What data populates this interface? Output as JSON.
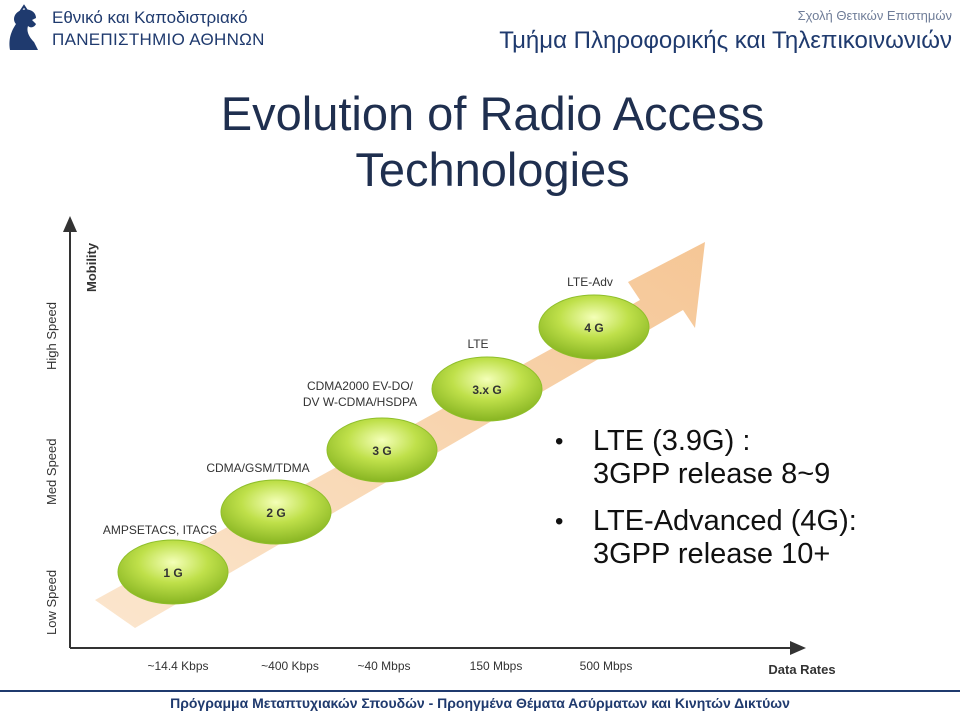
{
  "header": {
    "uni_line1": "Εθνικό και Καποδιστριακό",
    "uni_line2": "ΠΑΝΕΠΙΣΤΗΜΙΟ ΑΘΗΝΩΝ",
    "school": "Σχολή Θετικών Επιστημών",
    "department": "Τμήμα Πληροφορικής και Τηλεπικοινωνιών"
  },
  "slide": {
    "title_line1": "Evolution of Radio Access",
    "title_line2": "Technologies"
  },
  "diagram": {
    "y_axis_label": "Mobility",
    "y_levels": [
      "Low Speed",
      "Med Speed",
      "High Speed"
    ],
    "x_axis_label": "Data Rates",
    "x_ticks": [
      "~14.4 Kbps",
      "~400 Kbps",
      "~40 Mbps",
      "150 Mbps",
      "500 Mbps"
    ],
    "generations": [
      {
        "badge": "1 G",
        "tech": "AMPSETACS, ITACS"
      },
      {
        "badge": "2 G",
        "tech": "CDMA/GSM/TDMA"
      },
      {
        "badge": "3 G",
        "tech_line1": "CDMA2000 EV-DO/",
        "tech_line2": "DV W-CDMA/HSDPA"
      },
      {
        "badge": "3.x G",
        "tech": "LTE"
      },
      {
        "badge": "4 G",
        "tech": "LTE-Adv"
      }
    ]
  },
  "bullets": [
    {
      "line1": "LTE (3.9G) :",
      "line2": "3GPP release 8~9"
    },
    {
      "line1": "LTE-Advanced (4G):",
      "line2": "3GPP release 10+"
    }
  ],
  "footer": {
    "text": "Πρόγραμμα Μεταπτυχιακών Σπουδών - Προηγμένα Θέματα Ασύρματων και Κινητών Δικτύων"
  },
  "colors": {
    "primary": "#1f3a6e",
    "arrow": "#f6cfa6",
    "badge": "#9ccc2a"
  }
}
